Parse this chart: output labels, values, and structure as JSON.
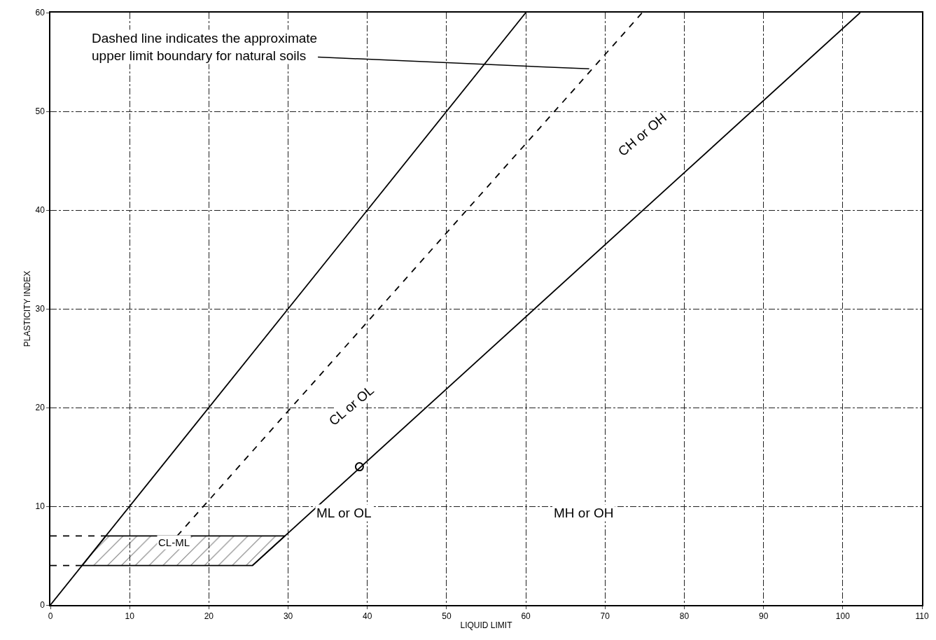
{
  "chart_data": {
    "type": "line",
    "xlabel": "LIQUID LIMIT",
    "ylabel": "PLASTICITY INDEX",
    "xlim": [
      0,
      110
    ],
    "xticks": [
      0,
      10,
      20,
      30,
      40,
      50,
      60,
      70,
      80,
      90,
      100,
      110
    ],
    "ylim": [
      0,
      60
    ],
    "yticks": [
      0,
      10,
      20,
      30,
      40,
      50,
      60
    ],
    "grid": true,
    "series": [
      {
        "color": "#000000",
        "line_style": "solid",
        "x": [
          0,
          60
        ],
        "values": [
          0,
          60
        ]
      },
      {
        "color": "#000000",
        "line_style": "solid",
        "x": [
          25.5,
          102.2
        ],
        "values": [
          4,
          60
        ]
      },
      {
        "color": "#000000",
        "line_style": "dashed",
        "x": [
          16,
          74.7
        ],
        "values": [
          7,
          60
        ]
      },
      {
        "color": "#000000",
        "line_style": "dashed",
        "x": [
          0,
          7
        ],
        "values": [
          7,
          7
        ]
      },
      {
        "color": "#000000",
        "line_style": "dashed",
        "x": [
          0,
          4
        ],
        "values": [
          4,
          4
        ]
      },
      {
        "type": "area",
        "color": "#000000",
        "x": [
          4,
          25.5,
          29.6,
          7,
          4
        ],
        "values": [
          4,
          4,
          7,
          7,
          4
        ]
      },
      {
        "type": "scatter",
        "color": "#000000",
        "marker": "circle",
        "x": [
          39
        ],
        "values": [
          14
        ]
      }
    ],
    "annotations": [
      {
        "text": "Dashed line indicates the approximate\nupper limit boundary for natural soils",
        "x": 68,
        "y": 54.3
      },
      "CL or OL",
      "CH or OH",
      "ML or OL",
      "MH or OH",
      "CL-ML"
    ]
  }
}
